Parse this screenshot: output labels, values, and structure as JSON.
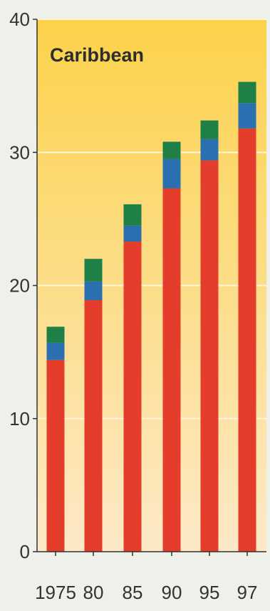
{
  "chart_data": {
    "type": "bar",
    "stacked": true,
    "title": "Caribbean",
    "xlabel": "",
    "ylabel": "",
    "categories": [
      "1975",
      "80",
      "85",
      "90",
      "95",
      "97"
    ],
    "ylim": [
      0,
      40
    ],
    "yticks": [
      "0",
      "10",
      "20",
      "30",
      "40"
    ],
    "grid": true,
    "legend": "none",
    "background_gradient": [
      "#fcd24a",
      "#fde9c8"
    ],
    "series": [
      {
        "color": "#e53d2b",
        "values": [
          14.4,
          18.9,
          23.3,
          27.3,
          29.4,
          31.8
        ]
      },
      {
        "color": "#2a6fb0",
        "values": [
          1.3,
          1.4,
          1.2,
          2.2,
          1.6,
          1.9
        ]
      },
      {
        "color": "#1e7f47",
        "values": [
          1.2,
          1.7,
          1.6,
          1.3,
          1.4,
          1.6
        ]
      }
    ]
  }
}
